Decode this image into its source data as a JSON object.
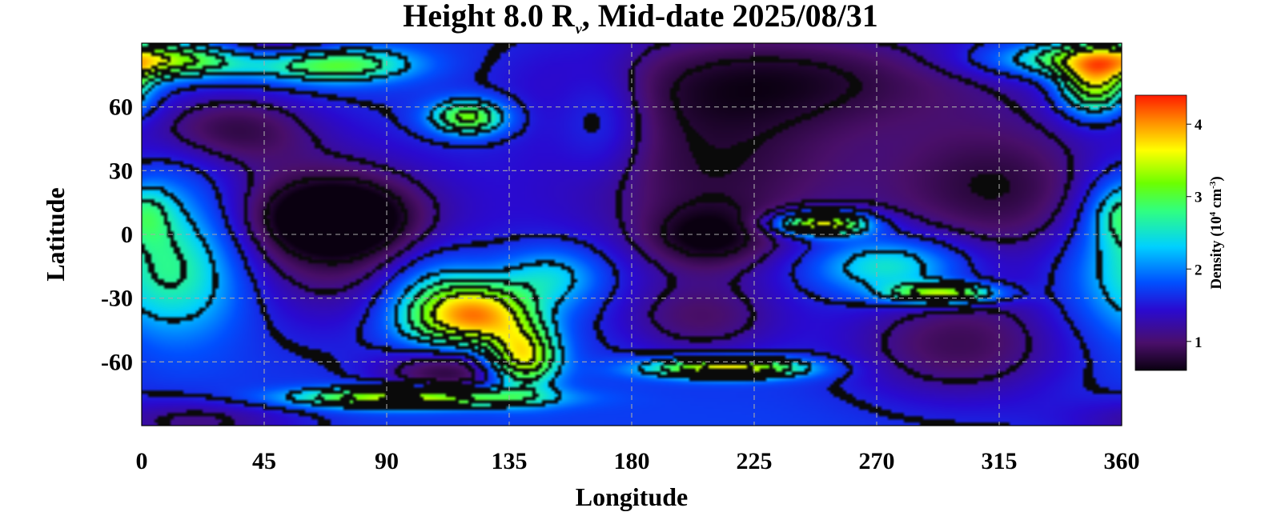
{
  "chart_data": {
    "type": "heatmap",
    "title": {
      "prefix": "Height 8.0 R",
      "sub": "v",
      "suffix": ", Mid-date 2025/08/31"
    },
    "xlabel": "Longitude",
    "ylabel": "Latitude",
    "xlim": [
      0,
      360
    ],
    "ylim": [
      -90,
      90
    ],
    "xticks": [
      0,
      45,
      90,
      135,
      180,
      225,
      270,
      315,
      360
    ],
    "yticks": [
      60,
      30,
      0,
      -30,
      -60
    ],
    "ytick_labels": [
      "60",
      "30",
      "0",
      "-30",
      "-60"
    ],
    "grid": true,
    "colorbar": {
      "label_prefix": "Density (10",
      "label_sup1": "4",
      "label_mid": " cm",
      "label_sup2": "-3",
      "label_suffix": ")",
      "range": [
        0.6,
        4.4
      ],
      "ticks": [
        1,
        2,
        3,
        4
      ],
      "colormap": [
        "#0a0010",
        "#4a0f6a",
        "#2a0ad0",
        "#0050ff",
        "#00d0ff",
        "#30ff80",
        "#6cff00",
        "#ffff00",
        "#ff9000",
        "#ff1a00"
      ],
      "placement": "right"
    },
    "background_density": 1.75,
    "features": [
      {
        "lon": 65,
        "lat": 0,
        "density": 0.85,
        "sigma_lon": 38,
        "sigma_lat": 30
      },
      {
        "lon": 72,
        "lat": 8,
        "density": 0.75,
        "sigma_lon": 18,
        "sigma_lat": 12
      },
      {
        "lon": 32,
        "lat": 50,
        "density": 1.0,
        "sigma_lon": 22,
        "sigma_lat": 12
      },
      {
        "lon": 50,
        "lat": 88,
        "density": 0.9,
        "sigma_lon": 20,
        "sigma_lat": 8
      },
      {
        "lon": 210,
        "lat": 30,
        "density": 0.85,
        "sigma_lon": 42,
        "sigma_lat": 32
      },
      {
        "lon": 240,
        "lat": 75,
        "density": 0.95,
        "sigma_lon": 60,
        "sigma_lat": 18
      },
      {
        "lon": 315,
        "lat": 22,
        "density": 0.85,
        "sigma_lon": 32,
        "sigma_lat": 26
      },
      {
        "lon": 300,
        "lat": -52,
        "density": 0.95,
        "sigma_lon": 30,
        "sigma_lat": 20
      },
      {
        "lon": 112,
        "lat": -64,
        "density": 0.6,
        "sigma_lon": 17,
        "sigma_lat": 9
      },
      {
        "lon": 208,
        "lat": -2,
        "density": 1.05,
        "sigma_lon": 16,
        "sigma_lat": 10
      },
      {
        "lon": 205,
        "lat": -40,
        "density": 1.1,
        "sigma_lon": 22,
        "sigma_lat": 14
      },
      {
        "lon": 20,
        "lat": -88,
        "density": 1.15,
        "sigma_lon": 28,
        "sigma_lat": 8
      },
      {
        "lon": 0,
        "lat": 82,
        "density": 3.6,
        "sigma_lon": 30,
        "sigma_lat": 6
      },
      {
        "lon": 70,
        "lat": 80,
        "density": 3.2,
        "sigma_lon": 20,
        "sigma_lat": 6
      },
      {
        "lon": 120,
        "lat": 55,
        "density": 3.3,
        "sigma_lon": 10,
        "sigma_lat": 6
      },
      {
        "lon": 10,
        "lat": 0,
        "density": 2.5,
        "sigma_lon": 18,
        "sigma_lat": 28
      },
      {
        "lon": 15,
        "lat": -20,
        "density": 2.4,
        "sigma_lon": 22,
        "sigma_lat": 20
      },
      {
        "lon": 125,
        "lat": -38,
        "density": 3.6,
        "sigma_lon": 14,
        "sigma_lat": 10
      },
      {
        "lon": 108,
        "lat": -35,
        "density": 2.8,
        "sigma_lon": 14,
        "sigma_lat": 18
      },
      {
        "lon": 140,
        "lat": -58,
        "density": 3.7,
        "sigma_lon": 9,
        "sigma_lat": 10
      },
      {
        "lon": 100,
        "lat": -77,
        "density": 3.7,
        "sigma_lon": 30,
        "sigma_lat": 3.5
      },
      {
        "lon": 150,
        "lat": -20,
        "density": 2.5,
        "sigma_lon": 14,
        "sigma_lat": 10
      },
      {
        "lon": 215,
        "lat": -63,
        "density": 3.8,
        "sigma_lon": 20,
        "sigma_lat": 3.5
      },
      {
        "lon": 250,
        "lat": 5,
        "density": 4.0,
        "sigma_lon": 12,
        "sigma_lat": 4
      },
      {
        "lon": 275,
        "lat": -15,
        "density": 2.8,
        "sigma_lon": 20,
        "sigma_lat": 10
      },
      {
        "lon": 295,
        "lat": -28,
        "density": 3.6,
        "sigma_lon": 14,
        "sigma_lat": 3.5
      },
      {
        "lon": 350,
        "lat": 70,
        "density": 3.5,
        "sigma_lon": 9,
        "sigma_lat": 10
      },
      {
        "lon": 360,
        "lat": 10,
        "density": 2.5,
        "sigma_lon": 8,
        "sigma_lat": 10
      },
      {
        "lon": 170,
        "lat": 55,
        "density": 2.2,
        "sigma_lon": 12,
        "sigma_lat": 20
      }
    ]
  }
}
